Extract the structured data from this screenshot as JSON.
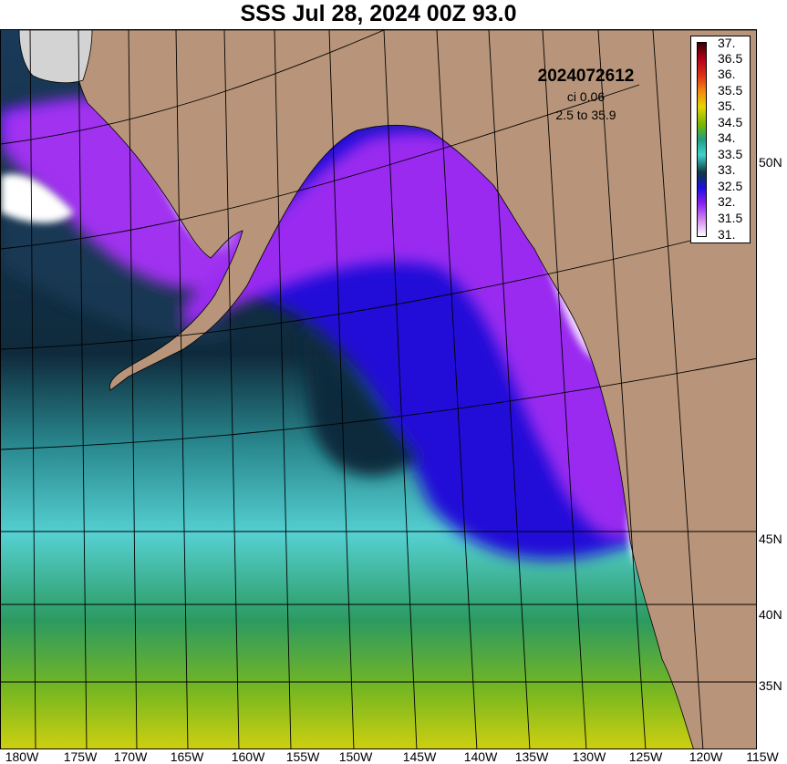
{
  "title": "SSS Jul 28, 2024 00Z 93.0",
  "info": {
    "date_code": "2024072612",
    "contour_interval": "ci 0.06",
    "range": "2.5 to 35.9"
  },
  "colors": {
    "land": "#b8957a",
    "no_data": "#d3d3d3",
    "graticule": "#000000"
  },
  "colorbar": {
    "labels": [
      "37.",
      "36.5",
      "36.",
      "35.5",
      "35.",
      "34.5",
      "34.",
      "33.5",
      "33.",
      "32.5",
      "32.",
      "31.5",
      "31."
    ],
    "colors": [
      "#3a0000",
      "#b0001a",
      "#e0301a",
      "#f08a10",
      "#e6d400",
      "#7ab800",
      "#1fa080",
      "#40d2d0",
      "#0e3a42",
      "#1a10e0",
      "#8a20f0",
      "#d490f0",
      "#ffffff"
    ]
  },
  "axes": {
    "lon_labels": [
      "180W",
      "175W",
      "170W",
      "165W",
      "160W",
      "155W",
      "150W",
      "145W",
      "140W",
      "135W",
      "130W",
      "125W",
      "120W",
      "115W"
    ],
    "lat_labels": [
      "50N",
      "45N",
      "40N",
      "35N"
    ]
  }
}
